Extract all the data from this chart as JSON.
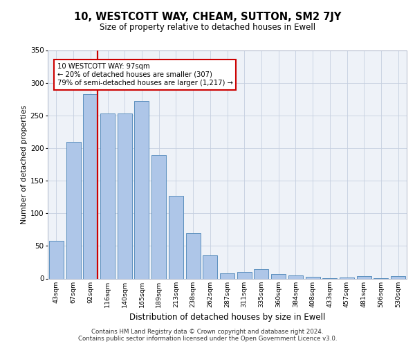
{
  "title": "10, WESTCOTT WAY, CHEAM, SUTTON, SM2 7JY",
  "subtitle": "Size of property relative to detached houses in Ewell",
  "xlabel": "Distribution of detached houses by size in Ewell",
  "ylabel": "Number of detached properties",
  "footer_line1": "Contains HM Land Registry data © Crown copyright and database right 2024.",
  "footer_line2": "Contains public sector information licensed under the Open Government Licence v3.0.",
  "annotation_title": "10 WESTCOTT WAY: 97sqm",
  "annotation_line1": "← 20% of detached houses are smaller (307)",
  "annotation_line2": "79% of semi-detached houses are larger (1,217) →",
  "categories": [
    "43sqm",
    "67sqm",
    "92sqm",
    "116sqm",
    "140sqm",
    "165sqm",
    "189sqm",
    "213sqm",
    "238sqm",
    "262sqm",
    "287sqm",
    "311sqm",
    "335sqm",
    "360sqm",
    "384sqm",
    "408sqm",
    "433sqm",
    "457sqm",
    "481sqm",
    "506sqm",
    "530sqm"
  ],
  "values": [
    58,
    210,
    283,
    253,
    253,
    272,
    189,
    127,
    70,
    36,
    8,
    10,
    14,
    7,
    5,
    3,
    1,
    2,
    4,
    1,
    4
  ],
  "bar_color": "#aec6e8",
  "bar_edge_color": "#5b8fbe",
  "highlight_color": "#cc0000",
  "ylim": [
    0,
    350
  ],
  "yticks": [
    0,
    50,
    100,
    150,
    200,
    250,
    300,
    350
  ],
  "plot_background": "#eef2f8",
  "annotation_box_color": "#ffffff",
  "annotation_box_edge": "#cc0000",
  "red_line_x": 2.43
}
